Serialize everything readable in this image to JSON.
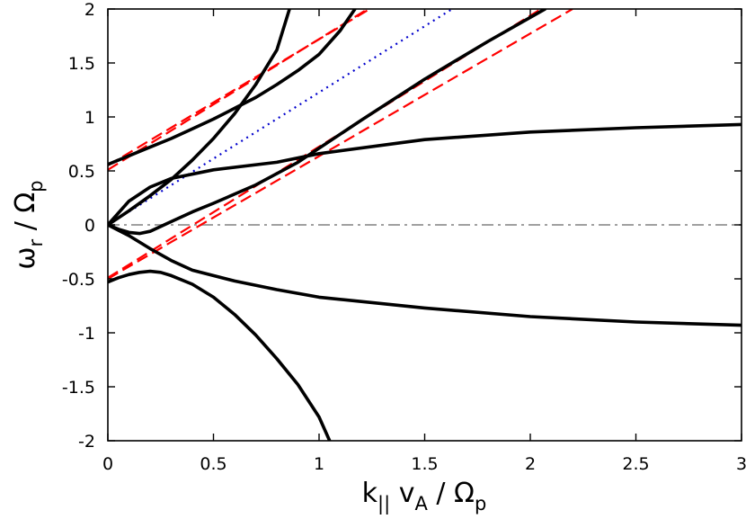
{
  "chart_data": {
    "type": "line",
    "xlabel": {
      "base": "k",
      "sub1": "||",
      "mid": " v",
      "sub2": "A",
      "tail": " / Ω",
      "sub3": "p"
    },
    "ylabel": {
      "base": "ω",
      "sub1": "r",
      "tail": " / Ω",
      "sub2": "p"
    },
    "xlim": [
      0,
      3
    ],
    "ylim": [
      -2,
      2
    ],
    "xticks": [
      0,
      0.5,
      1,
      1.5,
      2,
      2.5,
      3
    ],
    "xtick_labels": [
      "0",
      "0.5",
      "1",
      "1.5",
      "2",
      "2.5",
      "3"
    ],
    "yticks": [
      -2,
      -1.5,
      -1,
      -0.5,
      0,
      0.5,
      1,
      1.5,
      2
    ],
    "ytick_labels": [
      "-2",
      "-1.5",
      "-1",
      "-0.5",
      "0",
      "0.5",
      "1",
      "1.5",
      "2"
    ],
    "grid": false,
    "legend": "none",
    "colors": {
      "solid": "#000000",
      "asymptote": "#ff0000",
      "light_line": "#0000cc",
      "zero_line": "#a0a0a0"
    },
    "series": [
      {
        "style": "solid",
        "color": "#000000",
        "x": [
          0,
          0.1,
          0.2,
          0.3,
          0.4,
          0.5,
          0.6,
          0.7,
          0.8,
          0.9,
          1.0,
          1.1,
          1.17
        ],
        "y": [
          0.56,
          0.64,
          0.72,
          0.8,
          0.89,
          0.98,
          1.08,
          1.18,
          1.3,
          1.43,
          1.58,
          1.8,
          2.0
        ]
      },
      {
        "style": "solid",
        "color": "#000000",
        "x": [
          0,
          0.1,
          0.2,
          0.3,
          0.4,
          0.5,
          0.6,
          0.7,
          0.8,
          0.86
        ],
        "y": [
          0.0,
          0.13,
          0.27,
          0.42,
          0.6,
          0.8,
          1.03,
          1.3,
          1.62,
          2.0
        ]
      },
      {
        "style": "solid",
        "color": "#000000",
        "x": [
          0,
          0.1,
          0.2,
          0.3,
          0.5,
          0.8,
          1.0,
          1.5,
          2.0,
          2.5,
          3.0
        ],
        "y": [
          0.0,
          0.22,
          0.35,
          0.43,
          0.51,
          0.58,
          0.66,
          0.79,
          0.86,
          0.9,
          0.93
        ]
      },
      {
        "style": "solid",
        "color": "#000000",
        "x": [
          0,
          0.05,
          0.1,
          0.15,
          0.2,
          0.3,
          0.4,
          0.5,
          0.7,
          0.9,
          1.2,
          1.5,
          1.8,
          2.07
        ],
        "y": [
          0.0,
          -0.04,
          -0.07,
          -0.08,
          -0.06,
          0.03,
          0.12,
          0.2,
          0.37,
          0.58,
          0.97,
          1.35,
          1.7,
          2.0
        ]
      },
      {
        "style": "solid",
        "color": "#000000",
        "x": [
          0,
          0.1,
          0.2,
          0.3,
          0.4,
          0.6,
          0.8,
          1.0,
          1.5,
          2.0,
          2.5,
          3.0
        ],
        "y": [
          0.0,
          -0.1,
          -0.22,
          -0.33,
          -0.42,
          -0.52,
          -0.6,
          -0.67,
          -0.77,
          -0.85,
          -0.9,
          -0.93
        ]
      },
      {
        "style": "solid",
        "color": "#000000",
        "x": [
          0,
          0.05,
          0.1,
          0.15,
          0.2,
          0.25,
          0.3,
          0.4,
          0.5,
          0.6,
          0.7,
          0.8,
          0.9,
          1.0,
          1.05
        ],
        "y": [
          -0.53,
          -0.49,
          -0.46,
          -0.44,
          -0.43,
          -0.44,
          -0.47,
          -0.55,
          -0.67,
          -0.83,
          -1.02,
          -1.24,
          -1.48,
          -1.78,
          -2.0
        ]
      },
      {
        "style": "dashed",
        "color": "#ff0000",
        "x": [
          0,
          1.24
        ],
        "y": [
          0.55,
          2.0
        ]
      },
      {
        "style": "dashed",
        "color": "#ff0000",
        "x": [
          0,
          1.23
        ],
        "y": [
          0.51,
          2.0
        ]
      },
      {
        "style": "dashed",
        "color": "#ff0000",
        "x": [
          0,
          2.05
        ],
        "y": [
          -0.49,
          2.0
        ]
      },
      {
        "style": "dashed",
        "color": "#ff0000",
        "x": [
          0,
          2.2
        ],
        "y": [
          -0.5,
          2.0
        ]
      },
      {
        "style": "dotted",
        "color": "#0000cc",
        "x": [
          0,
          1.63
        ],
        "y": [
          0.0,
          2.0
        ]
      },
      {
        "style": "dashdot",
        "color": "#a0a0a0",
        "x": [
          0,
          3
        ],
        "y": [
          0,
          0
        ]
      }
    ]
  }
}
